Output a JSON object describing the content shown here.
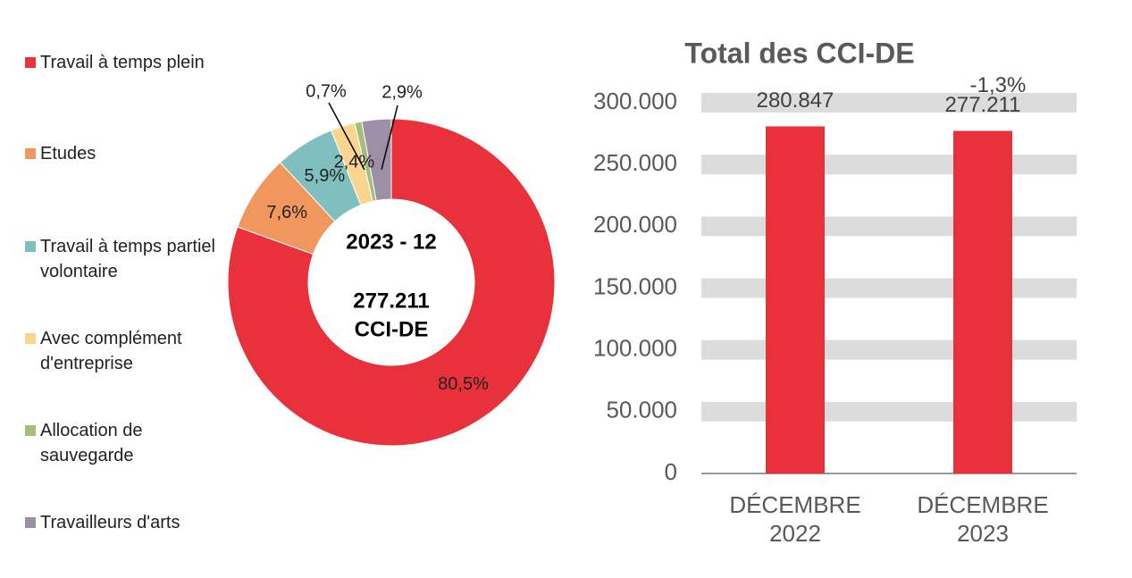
{
  "chart_data": [
    {
      "type": "pie",
      "categories": [
        "Travail à temps plein",
        "Etudes",
        "Travail à temps partiel volontaire",
        "Avec complément d'entreprise",
        "Allocation de sauvegarde",
        "Travailleurs d'arts"
      ],
      "values": [
        80.5,
        7.6,
        5.9,
        2.4,
        0.7,
        2.9
      ],
      "value_labels": [
        "80,5%",
        "7,6%",
        "5,9%",
        "2,4%",
        "0,7%",
        "2,9%"
      ],
      "colors": [
        "#e8313a",
        "#f0975e",
        "#7fbfbf",
        "#fad58e",
        "#a2bf7a",
        "#9d8fa6"
      ],
      "center_text": [
        "2023 - 12",
        "277.211",
        "CCI-DE"
      ]
    },
    {
      "type": "bar",
      "title": "Total des CCI-DE",
      "categories": [
        "DÉCEMBRE 2022",
        "DÉCEMBRE 2023"
      ],
      "values": [
        280847,
        277211
      ],
      "value_labels": [
        "280.847",
        "277.211"
      ],
      "annotation": "-1,3%",
      "color": "#e8313a",
      "ylim": [
        0,
        300000
      ],
      "yticks": [
        0,
        {
          "value": 50000,
          "label": "50.000"
        },
        {
          "value": 100000,
          "label": "100.000"
        },
        {
          "value": 150000,
          "label": "150.000"
        },
        {
          "value": 200000,
          "label": "200.000"
        },
        {
          "value": 250000,
          "label": "250.000"
        },
        {
          "value": 300000,
          "label": "300.000"
        }
      ],
      "grid": true
    }
  ]
}
